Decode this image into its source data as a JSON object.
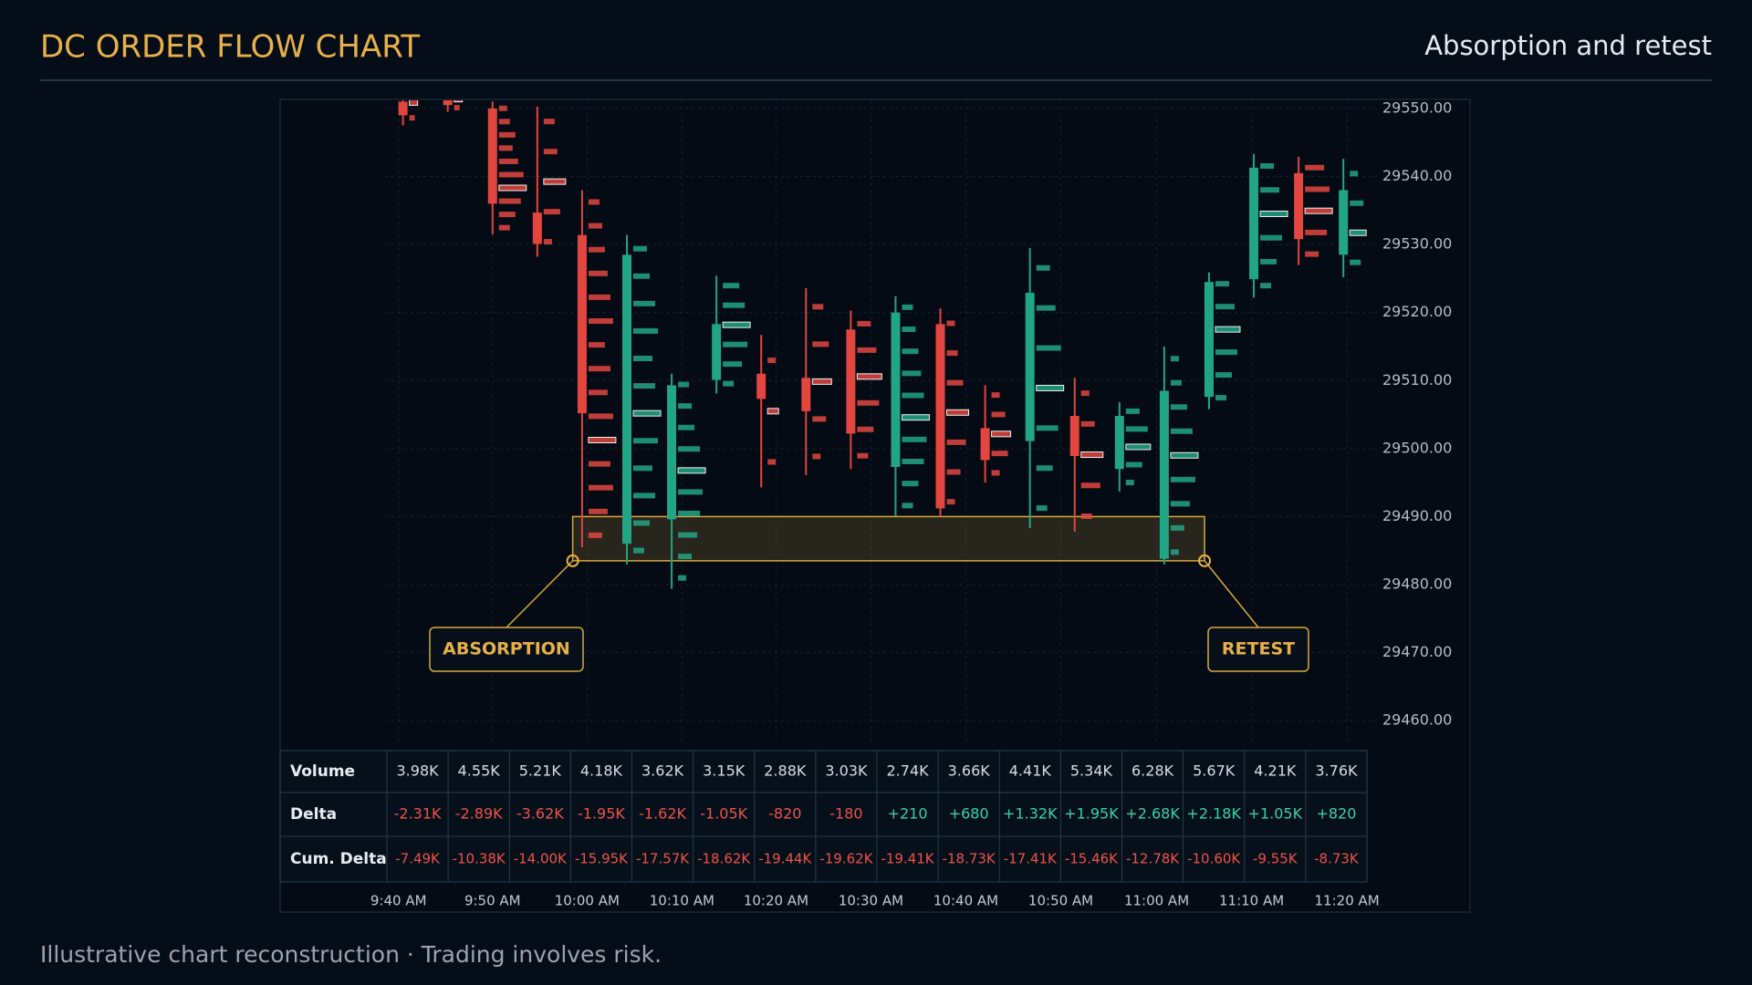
{
  "header": {
    "title": "DC ORDER FLOW CHART",
    "subtitle": "Absorption and retest"
  },
  "chart_data": {
    "type": "candlestick",
    "up_color": "#22a584",
    "down_color": "#e2463f",
    "grid": true,
    "xlim": [
      -0.4,
      21.75
    ],
    "ylim": [
      29456.8,
      29551.2
    ],
    "xticks": [
      {
        "value": -0.1,
        "label": "9:40 AM"
      },
      {
        "value": 2.0,
        "label": "9:50 AM"
      },
      {
        "value": 4.11,
        "label": "10:00 AM"
      },
      {
        "value": 6.23,
        "label": "10:10 AM"
      },
      {
        "value": 8.33,
        "label": "10:20 AM"
      },
      {
        "value": 10.45,
        "label": "10:30 AM"
      },
      {
        "value": 12.57,
        "label": "10:40 AM"
      },
      {
        "value": 14.69,
        "label": "10:50 AM"
      },
      {
        "value": 16.83,
        "label": "11:00 AM"
      },
      {
        "value": 18.95,
        "label": "11:10 AM"
      },
      {
        "value": 21.08,
        "label": "11:20 AM"
      }
    ],
    "yticks": [
      {
        "value": 29550,
        "label": "29550.00"
      },
      {
        "value": 29540,
        "label": "29540.00"
      },
      {
        "value": 29530,
        "label": "29530.00"
      },
      {
        "value": 29520,
        "label": "29520.00"
      },
      {
        "value": 29510,
        "label": "29510.00"
      },
      {
        "value": 29500,
        "label": "29500.00"
      },
      {
        "value": 29490,
        "label": "29490.00"
      },
      {
        "value": 29480,
        "label": "29480.00"
      },
      {
        "value": 29470,
        "label": "29470.00"
      },
      {
        "value": 29460,
        "label": "29460.00"
      }
    ],
    "open": [
      29551,
      29551.5,
      29550,
      29534.7,
      29531.4,
      29486,
      29489.6,
      29510.1,
      29511,
      29510.4,
      29517.5,
      29497.3,
      29518.3,
      29503,
      29501.1,
      29504.8,
      29497,
      29483.8,
      29507.6,
      29524.9,
      29540.5,
      29528.5
    ],
    "high": [
      29552,
      29552,
      29551,
      29550.3,
      29538,
      29531.4,
      29511,
      29525.4,
      29516.7,
      29523.6,
      29520.3,
      29522.4,
      29520.6,
      29509.3,
      29529.5,
      29510.4,
      29506.8,
      29515,
      29525.9,
      29543.3,
      29542.9,
      29542.6
    ],
    "low": [
      29547.5,
      29549.5,
      29531.5,
      29528.2,
      29485.5,
      29483,
      29479.4,
      29508.1,
      29494.3,
      29496.1,
      29497,
      29490,
      29490,
      29495,
      29488.3,
      29487.8,
      29493.7,
      29483,
      29505.8,
      29522.2,
      29527,
      29525.2
    ],
    "close": [
      29549,
      29550.5,
      29536,
      29530.1,
      29505.2,
      29528.5,
      29509.3,
      29518.3,
      29507.3,
      29505.5,
      29502.2,
      29520,
      29491.2,
      29498.3,
      29522.9,
      29498.9,
      29504.8,
      29508.5,
      29524.5,
      29541.3,
      29530.8,
      29538
    ],
    "profiles": [
      [
        2,
        3
      ],
      [
        2,
        3
      ],
      [
        4,
        6,
        8,
        10,
        9,
        7,
        5,
        6,
        4,
        3
      ],
      [
        3,
        6,
        8,
        5,
        4
      ],
      [
        5,
        7,
        9,
        8,
        10,
        9,
        7,
        8,
        6,
        9,
        8,
        7,
        6,
        5,
        4
      ],
      [
        4,
        6,
        8,
        7,
        9,
        10,
        8,
        7,
        9,
        8,
        6,
        5
      ],
      [
        3,
        5,
        7,
        8,
        9,
        10,
        8,
        6,
        5,
        4
      ],
      [
        4,
        7,
        9,
        10,
        8,
        6
      ],
      [
        3,
        4,
        3
      ],
      [
        3,
        5,
        7,
        6,
        4
      ],
      [
        4,
        6,
        8,
        9,
        7,
        5
      ],
      [
        4,
        6,
        8,
        9,
        10,
        8,
        7,
        6,
        5,
        4
      ],
      [
        3,
        5,
        7,
        8,
        6,
        4,
        3
      ],
      [
        3,
        6,
        7,
        5,
        3
      ],
      [
        4,
        6,
        8,
        10,
        9,
        7,
        5
      ],
      [
        4,
        7,
        8,
        5,
        3
      ],
      [
        3,
        6,
        9,
        8,
        5
      ],
      [
        3,
        5,
        7,
        9,
        10,
        8,
        6,
        4,
        3
      ],
      [
        4,
        6,
        8,
        9,
        7,
        5
      ],
      [
        4,
        6,
        8,
        10,
        7,
        5
      ],
      [
        5,
        8,
        10,
        9,
        7
      ],
      [
        4,
        6,
        5,
        3
      ]
    ],
    "zone": {
      "x": [
        3.79,
        17.9
      ],
      "y": [
        29483.5,
        29490
      ],
      "labels": [
        "ABSORPTION",
        "RETEST"
      ]
    }
  },
  "table": {
    "rows": [
      {
        "label": "Volume",
        "cells": [
          "3.98K",
          "4.55K",
          "5.21K",
          "4.18K",
          "3.62K",
          "3.15K",
          "2.88K",
          "3.03K",
          "2.74K",
          "3.66K",
          "4.41K",
          "5.34K",
          "6.28K",
          "5.67K",
          "4.21K",
          "3.76K"
        ]
      },
      {
        "label": "Delta",
        "cells": [
          "-2.31K",
          "-2.89K",
          "-3.62K",
          "-1.95K",
          "-1.62K",
          "-1.05K",
          "-820",
          "-180",
          "+210",
          "+680",
          "+1.32K",
          "+1.95K",
          "+2.68K",
          "+2.18K",
          "+1.05K",
          "+820"
        ]
      },
      {
        "label": "Cum. Delta",
        "cells": [
          "-7.49K",
          "-10.38K",
          "-14.00K",
          "-15.95K",
          "-17.57K",
          "-18.62K",
          "-19.44K",
          "-19.62K",
          "-19.41K",
          "-18.73K",
          "-17.41K",
          "-15.46K",
          "-12.78K",
          "-10.60K",
          "-9.55K",
          "-8.73K"
        ]
      }
    ]
  },
  "footer": {
    "text": "Illustrative chart reconstruction · Trading involves risk."
  }
}
